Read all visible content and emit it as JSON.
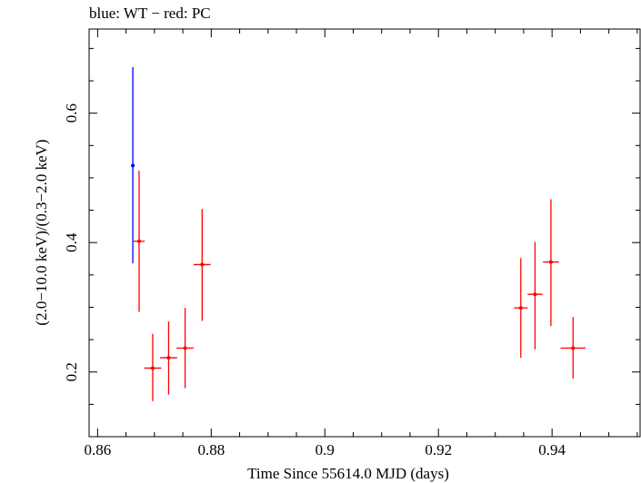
{
  "chart_data": {
    "type": "scatter",
    "title": "blue: WT − red: PC",
    "xlabel": "Time Since 55614.0 MJD (days)",
    "ylabel": "(2.0−10.0 keV)/(0.3−2.0 keV)",
    "xlim": [
      0.8585,
      0.9555
    ],
    "ylim": [
      0.1,
      0.73
    ],
    "xticks": [
      0.86,
      0.88,
      0.9,
      0.92,
      0.94
    ],
    "xtick_labels": [
      "0.86",
      "0.88",
      "0.9",
      "0.92",
      "0.94"
    ],
    "yticks": [
      0.2,
      0.4,
      0.6
    ],
    "ytick_labels": [
      "0.2",
      "0.4",
      "0.6"
    ],
    "grid": false,
    "series": [
      {
        "color": "#0000ff",
        "points": [
          {
            "x": 0.8662,
            "xerr": 0.0002,
            "y": 0.519,
            "ylo": 0.368,
            "yhi": 0.671
          }
        ]
      },
      {
        "color": "#ff0000",
        "points": [
          {
            "x": 0.8673,
            "xerr": 0.001,
            "y": 0.402,
            "ylo": 0.293,
            "yhi": 0.511
          },
          {
            "x": 0.8697,
            "xerr": 0.0015,
            "y": 0.206,
            "ylo": 0.155,
            "yhi": 0.259
          },
          {
            "x": 0.8725,
            "xerr": 0.0015,
            "y": 0.222,
            "ylo": 0.165,
            "yhi": 0.278
          },
          {
            "x": 0.8754,
            "xerr": 0.0015,
            "y": 0.237,
            "ylo": 0.175,
            "yhi": 0.299
          },
          {
            "x": 0.8784,
            "xerr": 0.0015,
            "y": 0.366,
            "ylo": 0.279,
            "yhi": 0.452
          },
          {
            "x": 0.9345,
            "xerr": 0.0012,
            "y": 0.299,
            "ylo": 0.222,
            "yhi": 0.376
          },
          {
            "x": 0.937,
            "xerr": 0.0013,
            "y": 0.32,
            "ylo": 0.235,
            "yhi": 0.401
          },
          {
            "x": 0.9398,
            "xerr": 0.0014,
            "y": 0.37,
            "ylo": 0.271,
            "yhi": 0.467
          },
          {
            "x": 0.9437,
            "xerr": 0.0022,
            "y": 0.237,
            "ylo": 0.19,
            "yhi": 0.285
          }
        ]
      }
    ]
  }
}
